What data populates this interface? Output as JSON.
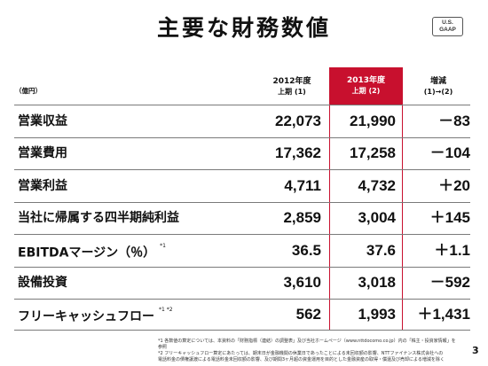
{
  "title": "主要な財務数値",
  "badge": {
    "line1": "U.S.",
    "line2": "GAAP"
  },
  "unit": "（億円）",
  "columns": [
    {
      "label": "2012年度",
      "sub": "上期 (1)"
    },
    {
      "label": "2013年度",
      "sub": "上期 (2)"
    },
    {
      "label": "増減",
      "sub": "(1)→(2)"
    }
  ],
  "highlight_color": "#c8102e",
  "rows": [
    {
      "label": "営業収益",
      "note": "",
      "v1": "22,073",
      "v2": "21,990",
      "v3": "－83"
    },
    {
      "label": "営業費用",
      "note": "",
      "v1": "17,362",
      "v2": "17,258",
      "v3": "－104"
    },
    {
      "label": "営業利益",
      "note": "",
      "v1": "4,711",
      "v2": "4,732",
      "v3": "＋20"
    },
    {
      "label": "当社に帰属する四半期純利益",
      "note": "",
      "v1": "2,859",
      "v2": "3,004",
      "v3": "＋145"
    },
    {
      "label": "EBITDAマージン（％）",
      "note": "*1",
      "v1": "36.5",
      "v2": "37.6",
      "v3": "＋1.1"
    },
    {
      "label": "設備投資",
      "note": "",
      "v1": "3,610",
      "v2": "3,018",
      "v3": "－592"
    },
    {
      "label": "フリーキャッシュフロー",
      "note": "*1 *2",
      "v1": "562",
      "v2": "1,993",
      "v3": "＋1,431"
    }
  ],
  "footnotes": [
    "*1 各数値の算定については、本資料の「財務指標（連結）の調整表」及び当社ホームページ（www.nttdocomo.co.jp）内の「株主・投資家情報」を参照",
    "*2 フリーキャッシュフロー算定にあたっては、期末日が金融機関の休業日であったことによる未回収額の影響、NTTファイナンス株式会社への",
    "電話料金の債権譲渡による電話料金未回収額の影響、及び期間3ヶ月超の資金運用を目的とした金融資産の取得・償還及び売却による増減を除く"
  ],
  "page_number": "3"
}
